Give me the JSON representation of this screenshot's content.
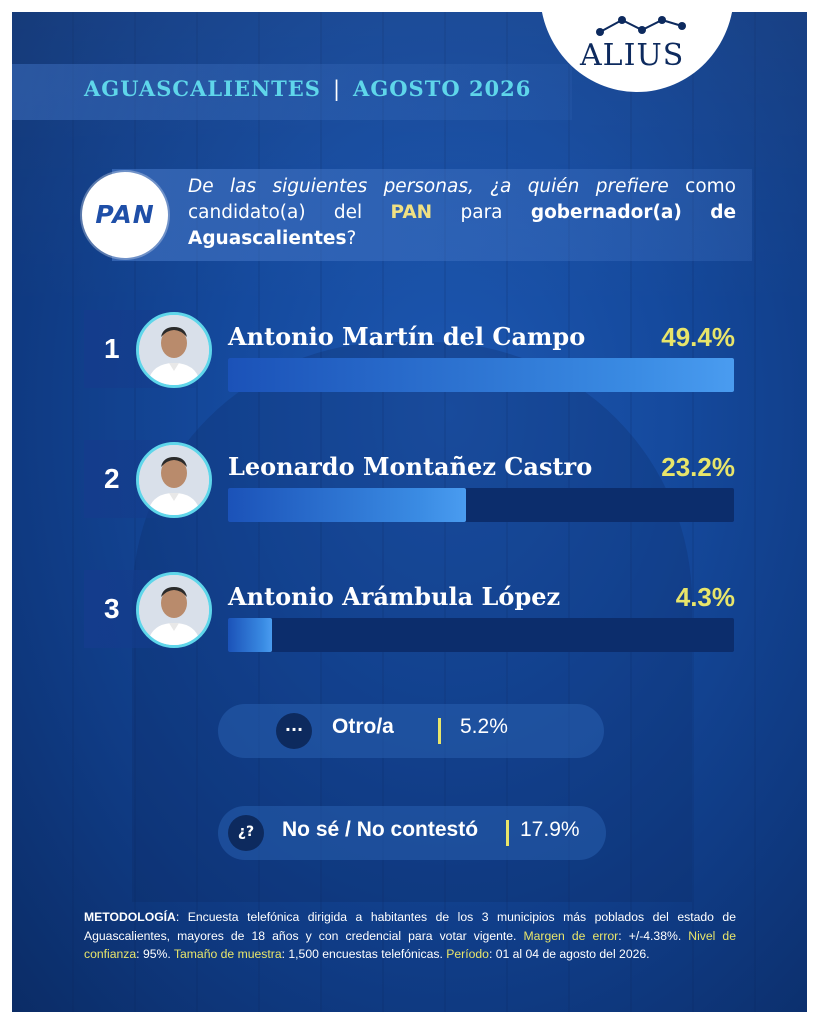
{
  "brand": {
    "logo_text": "ALIUS"
  },
  "header": {
    "state": "AGUASCALIENTES",
    "separator": "|",
    "date": "AGOSTO 2026"
  },
  "question": {
    "party_logo_text": "PAN",
    "part1": "De las siguientes personas, ¿a quién prefiere",
    "part2": " como candidato(a) del ",
    "party": "PAN",
    "part3": " para ",
    "bold1": "gobernador(a)",
    "bold2": "de Aguascalientes",
    "end": "?"
  },
  "colors": {
    "accent_cyan": "#5fd6ea",
    "accent_yellow": "#e8e56a",
    "bar": "#3a8be3",
    "track": "#0c2d6c",
    "background": "#154a9e"
  },
  "chart_data": {
    "type": "bar",
    "orientation": "horizontal",
    "title": "",
    "xlim": [
      0,
      49.4
    ],
    "categories": [
      "Antonio Martín del Campo",
      "Leonardo Montañez Castro",
      "Antonio Arámbula López"
    ],
    "ranks": [
      "1",
      "2",
      "3"
    ],
    "values": [
      49.4,
      23.2,
      4.3
    ],
    "value_labels": [
      "49.4%",
      "23.2%",
      "4.3%"
    ]
  },
  "extra": {
    "other": {
      "icon": "···",
      "label": "Otro/a",
      "value": "5.2%"
    },
    "unknown": {
      "icon": "¿?",
      "label": "No sé / No contestó",
      "value": "17.9%"
    }
  },
  "methodology": {
    "k1": "METODOLOGÍA",
    "t1": ": Encuesta telefónica dirigida a habitantes de los 3 municipios más poblados del estado de Aguascalientes, mayores de 18 años y con credencial para votar vigente. ",
    "k2": "Margen de error",
    "t2": ": +/-4.38%. ",
    "k3": "Nivel de confianza",
    "t3": ": 95%. ",
    "k4": "Tamaño de muestra",
    "t4": ": 1,500 encuestas telefónicas. ",
    "k5": "Período",
    "t5": ": 01 al 04 de agosto del 2026."
  }
}
